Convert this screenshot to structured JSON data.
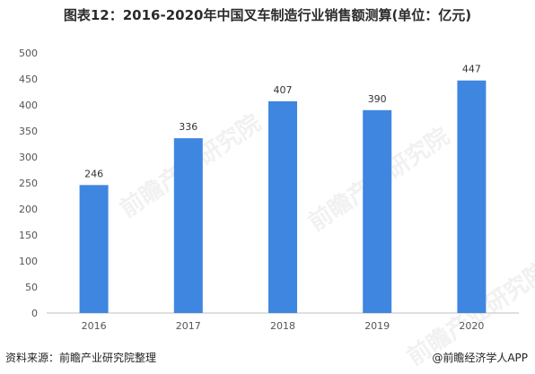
{
  "title": "图表12：2016-2020年中国叉车制造行业销售额测算(单位：亿元)",
  "source_text": "资料来源：前瞻产业研究院整理",
  "credit_text": "@前瞻经济学人APP",
  "watermark_text": "前瞻产业研究院",
  "chart_data": {
    "type": "bar",
    "title": "图表12：2016-2020年中国叉车制造行业销售额测算(单位：亿元)",
    "categories": [
      "2016",
      "2017",
      "2018",
      "2019",
      "2020"
    ],
    "values": [
      246,
      336,
      407,
      390,
      447
    ],
    "ylim": [
      0,
      500
    ],
    "yticks": [
      0,
      50,
      100,
      150,
      200,
      250,
      300,
      350,
      400,
      450,
      500
    ],
    "bar_color": "#3f86e0",
    "grid": false,
    "data_labels": true
  }
}
